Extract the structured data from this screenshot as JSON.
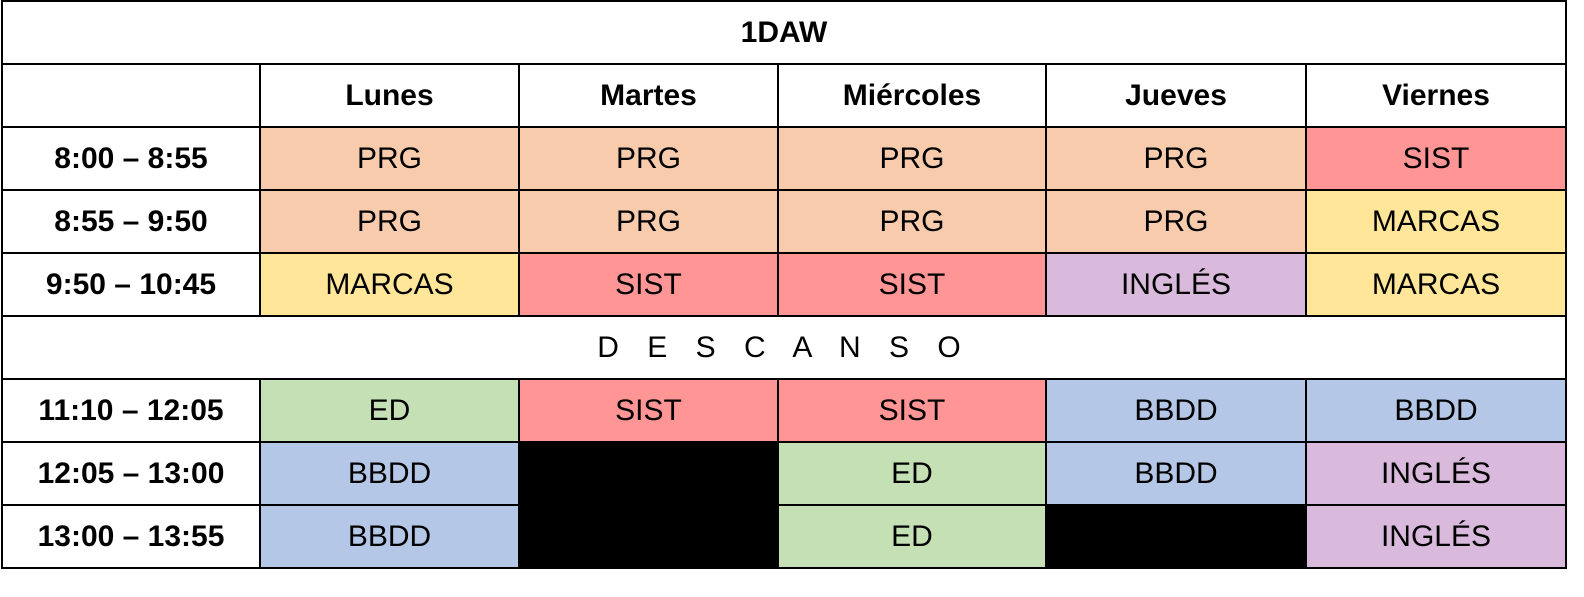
{
  "title": "1DAW",
  "days": [
    "Lunes",
    "Martes",
    "Miércoles",
    "Jueves",
    "Viernes"
  ],
  "break_label": "D E S C A N S O",
  "colors": {
    "PRG": "#f8cbad",
    "SIST": "#ff9595",
    "MARCAS": "#ffe699",
    "INGLÉS": "#d9b9dc",
    "ED": "#c5e0b4",
    "BBDD": "#b4c7e7",
    "free": "#000000"
  },
  "morning": [
    {
      "time": "8:00 – 8:55",
      "cells": [
        "PRG",
        "PRG",
        "PRG",
        "PRG",
        "SIST"
      ]
    },
    {
      "time": "8:55 – 9:50",
      "cells": [
        "PRG",
        "PRG",
        "PRG",
        "PRG",
        "MARCAS"
      ]
    },
    {
      "time": "9:50 – 10:45",
      "cells": [
        "MARCAS",
        "SIST",
        "SIST",
        "INGLÉS",
        "MARCAS"
      ]
    }
  ],
  "afternoon": [
    {
      "time": "11:10 – 12:05",
      "cells": [
        "ED",
        "SIST",
        "SIST",
        "BBDD",
        "BBDD"
      ]
    },
    {
      "time": "12:05 – 13:00",
      "cells": [
        "BBDD",
        "",
        "ED",
        "BBDD",
        "INGLÉS"
      ]
    },
    {
      "time": "13:00 – 13:55",
      "cells": [
        "BBDD",
        "",
        "ED",
        "",
        "INGLÉS"
      ]
    }
  ]
}
